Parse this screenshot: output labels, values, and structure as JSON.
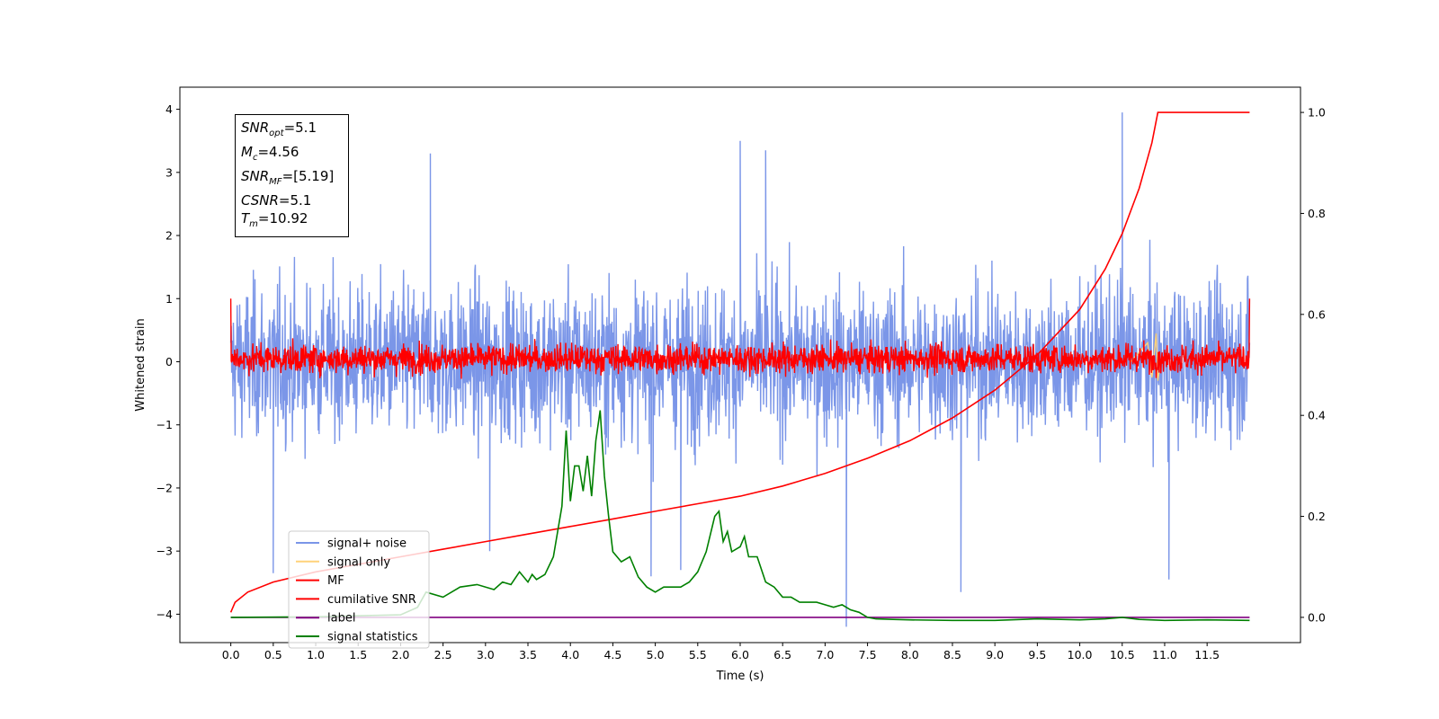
{
  "chart_data": {
    "type": "line",
    "xlabel": "Time (s)",
    "ylabel": "Whitened strain",
    "xlim": [
      -0.6,
      12.6
    ],
    "ylim": [
      -4.45,
      4.35
    ],
    "y2lim": [
      -0.05,
      1.05
    ],
    "x_ticks": [
      "0.0",
      "0.5",
      "1.0",
      "1.5",
      "2.0",
      "2.5",
      "3.0",
      "3.5",
      "4.0",
      "4.5",
      "5.0",
      "5.5",
      "6.0",
      "6.5",
      "7.0",
      "7.5",
      "8.0",
      "8.5",
      "9.0",
      "9.5",
      "10.0",
      "10.5",
      "11.0",
      "11.5"
    ],
    "y_ticks": [
      "4",
      "3",
      "2",
      "1",
      "0",
      "−1",
      "−2",
      "−3",
      "−4"
    ],
    "y2_ticks": [
      "1.0",
      "0.8",
      "0.6",
      "0.4",
      "0.2",
      "0.0"
    ],
    "legend_position": "lower-left",
    "legend": [
      {
        "name": "signal+ noise",
        "color": "#7b96e8"
      },
      {
        "name": "signal only",
        "color": "#ffd27a"
      },
      {
        "name": "MF",
        "color": "#ff0000"
      },
      {
        "name": "cumilative SNR",
        "color": "#ff0000"
      },
      {
        "name": "label",
        "color": "#800080"
      },
      {
        "name": "signal statistics",
        "color": "#008000"
      }
    ],
    "annotation": {
      "snr_opt_base": "SNR",
      "snr_opt_sub": "opt",
      "snr_opt_value": "=5.1",
      "mc_base": "M",
      "mc_sub": "c",
      "mc_value": "=4.56",
      "snr_mf_base": "SNR",
      "snr_mf_sub": "MF",
      "snr_mf_value": "=[5.19]",
      "csnr_base": "CSNR",
      "csnr_value": "=5.1",
      "tm_base": "T",
      "tm_sub": "m",
      "tm_value": "=10.92"
    },
    "series": [
      {
        "name": "signal+ noise",
        "axis": "left",
        "color": "#7b96e8",
        "description_range": [
          -2.5,
          2.5
        ],
        "spikes": [
          [
            0.5,
            -3.35
          ],
          [
            2.35,
            3.3
          ],
          [
            3.05,
            -3.0
          ],
          [
            4.95,
            -3.4
          ],
          [
            5.3,
            -3.3
          ],
          [
            6.0,
            3.5
          ],
          [
            6.3,
            3.35
          ],
          [
            7.25,
            -4.2
          ],
          [
            8.6,
            -3.65
          ],
          [
            10.5,
            3.95
          ],
          [
            11.05,
            -3.45
          ]
        ],
        "t_start": 0.0,
        "t_end": 12.0
      },
      {
        "name": "signal only",
        "axis": "left",
        "color": "#ffd27a",
        "points": [
          [
            10.6,
            0.0
          ],
          [
            10.8,
            0.3
          ],
          [
            10.85,
            -0.25
          ],
          [
            10.9,
            0.45
          ],
          [
            10.92,
            -0.3
          ],
          [
            10.95,
            0.0
          ]
        ]
      },
      {
        "name": "MF",
        "axis": "left",
        "color": "#ff0000",
        "description_range": [
          -0.3,
          0.55
        ],
        "t_start": 0.0,
        "t_end": 12.0
      },
      {
        "name": "cumilative SNR",
        "axis": "right",
        "color": "#ff0000",
        "x": [
          0.0,
          0.05,
          0.2,
          0.5,
          1.0,
          1.5,
          2.0,
          2.5,
          3.0,
          3.5,
          4.0,
          4.5,
          5.0,
          5.5,
          6.0,
          6.5,
          7.0,
          7.5,
          8.0,
          8.5,
          9.0,
          9.5,
          10.0,
          10.3,
          10.5,
          10.7,
          10.85,
          10.92,
          11.0,
          11.5,
          12.0
        ],
        "values": [
          0.01,
          0.03,
          0.05,
          0.07,
          0.09,
          0.105,
          0.12,
          0.135,
          0.15,
          0.165,
          0.18,
          0.195,
          0.21,
          0.225,
          0.24,
          0.26,
          0.285,
          0.315,
          0.35,
          0.395,
          0.45,
          0.52,
          0.61,
          0.69,
          0.76,
          0.85,
          0.94,
          1.0,
          1.0,
          1.0,
          1.0
        ]
      },
      {
        "name": "label",
        "axis": "right",
        "color": "#800080",
        "x": [
          0.0,
          12.0
        ],
        "values": [
          0.0,
          0.0
        ]
      },
      {
        "name": "signal statistics",
        "axis": "right",
        "color": "#008000",
        "x": [
          0.0,
          1.0,
          2.0,
          2.2,
          2.3,
          2.5,
          2.7,
          2.9,
          3.1,
          3.2,
          3.3,
          3.4,
          3.5,
          3.55,
          3.6,
          3.7,
          3.8,
          3.9,
          3.95,
          4.0,
          4.05,
          4.1,
          4.15,
          4.2,
          4.25,
          4.3,
          4.35,
          4.4,
          4.45,
          4.5,
          4.6,
          4.7,
          4.8,
          4.9,
          5.0,
          5.1,
          5.2,
          5.3,
          5.4,
          5.5,
          5.6,
          5.7,
          5.75,
          5.8,
          5.85,
          5.9,
          6.0,
          6.05,
          6.1,
          6.2,
          6.3,
          6.4,
          6.5,
          6.6,
          6.7,
          6.8,
          6.9,
          7.0,
          7.1,
          7.2,
          7.3,
          7.4,
          7.5,
          7.6,
          7.8,
          8.0,
          8.5,
          9.0,
          9.5,
          10.0,
          10.3,
          10.5,
          10.7,
          11.0,
          11.5,
          12.0
        ],
        "values": [
          0.0,
          0.001,
          0.005,
          0.02,
          0.05,
          0.04,
          0.06,
          0.065,
          0.055,
          0.07,
          0.065,
          0.09,
          0.07,
          0.085,
          0.075,
          0.085,
          0.12,
          0.22,
          0.37,
          0.23,
          0.3,
          0.3,
          0.25,
          0.32,
          0.24,
          0.35,
          0.41,
          0.28,
          0.2,
          0.13,
          0.11,
          0.12,
          0.08,
          0.06,
          0.05,
          0.06,
          0.06,
          0.06,
          0.07,
          0.09,
          0.13,
          0.2,
          0.21,
          0.15,
          0.17,
          0.13,
          0.14,
          0.16,
          0.12,
          0.12,
          0.07,
          0.06,
          0.04,
          0.04,
          0.03,
          0.03,
          0.03,
          0.025,
          0.02,
          0.025,
          0.015,
          0.01,
          0.0,
          -0.003,
          -0.004,
          -0.005,
          -0.006,
          -0.006,
          -0.003,
          -0.005,
          -0.003,
          0.0,
          -0.004,
          -0.006,
          -0.005,
          -0.006
        ]
      }
    ]
  }
}
